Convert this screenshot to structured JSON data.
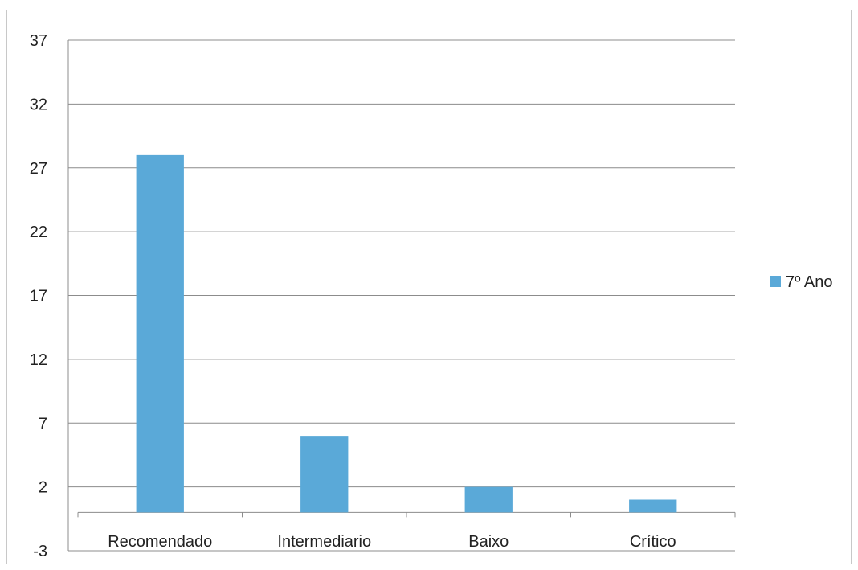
{
  "chart_data": {
    "type": "bar",
    "categories": [
      "Recomendado",
      "Intermediario",
      "Baixo",
      "Crítico"
    ],
    "series": [
      {
        "name": "7º Ano",
        "color": "#5aa9d8",
        "values": [
          28,
          6,
          2,
          1
        ]
      }
    ],
    "y_ticks": [
      -3,
      2,
      7,
      12,
      17,
      22,
      27,
      32,
      37
    ],
    "ylim": [
      -3,
      37
    ],
    "grid": true,
    "legend_position": "right"
  }
}
